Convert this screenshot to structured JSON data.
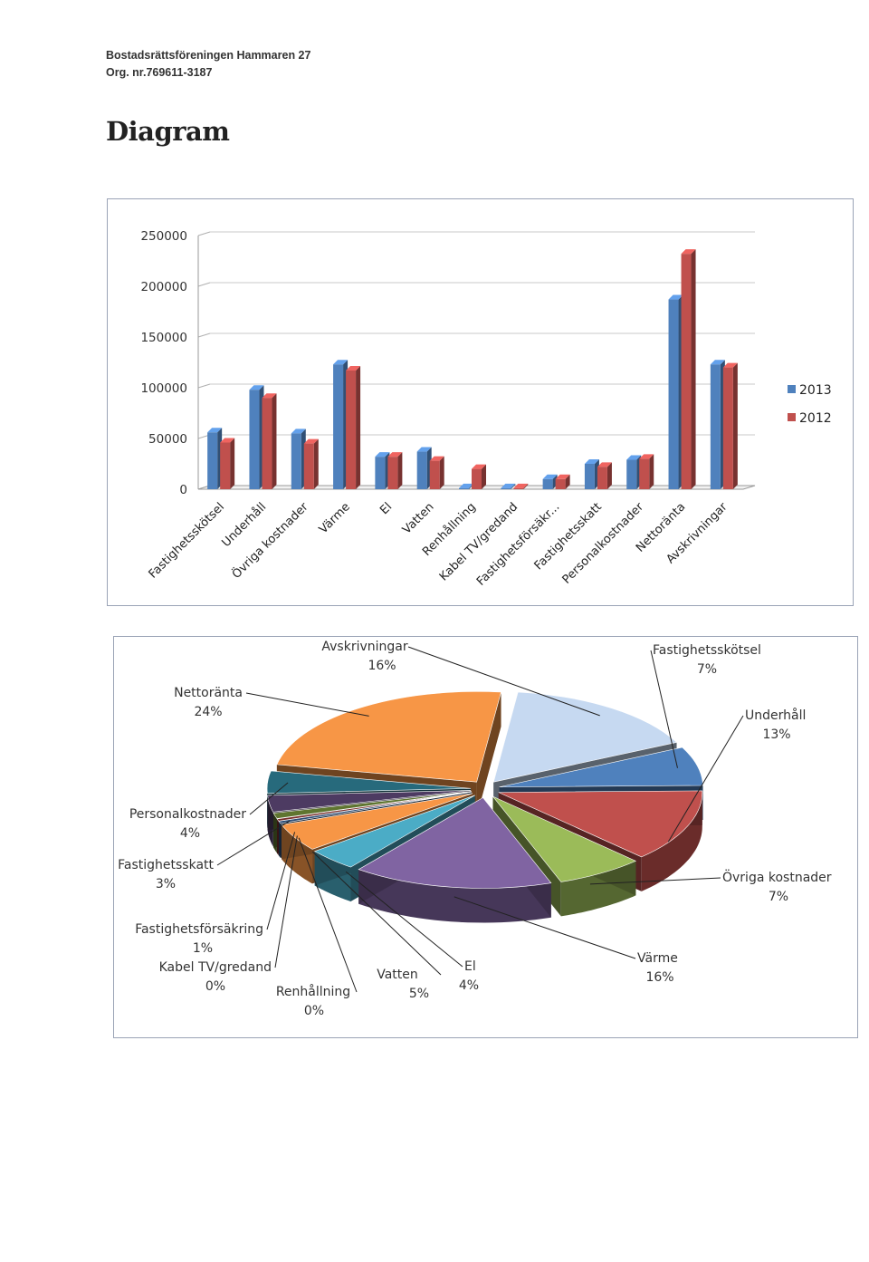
{
  "header": {
    "org_name": "Bostadsrättsföreningen Hammaren 27",
    "org_nr": "Org. nr.769611-3187",
    "title": "Diagram"
  },
  "colors": {
    "series_2013": "#4f81bd",
    "series_2012": "#c0504d"
  },
  "chart_data": [
    {
      "type": "bar",
      "style": "3d-clustered-column",
      "title": "",
      "xlabel": "",
      "ylabel": "",
      "ylim": [
        0,
        250000
      ],
      "yticks": [
        "0",
        "50000",
        "100000",
        "150000",
        "200000",
        "250000"
      ],
      "categories": [
        "Fastighetsskötsel",
        "Underhåll",
        "Övriga kostnader",
        "Värme",
        "El",
        "Vatten",
        "Renhållning",
        "Kabel TV/gredand",
        "Fastighetsförsäkr...",
        "Fastighetsskatt",
        "Personalkostnader",
        "Nettoränta",
        "Avskrivningar"
      ],
      "series": [
        {
          "name": "2013",
          "values": [
            56000,
            98000,
            55000,
            123000,
            32000,
            37000,
            1000,
            1000,
            10000,
            25000,
            29000,
            187000,
            123000
          ]
        },
        {
          "name": "2012",
          "values": [
            46000,
            90000,
            45000,
            117000,
            32000,
            28000,
            20000,
            1000,
            10000,
            22000,
            30000,
            232000,
            120000
          ]
        }
      ],
      "legend": "right"
    },
    {
      "type": "pie",
      "style": "3d-exploded-pie",
      "title": "",
      "slices": [
        {
          "label": "Avskrivningar",
          "pct_label": "16%",
          "value": 16,
          "color": "#c6d9f1"
        },
        {
          "label": "Fastighetsskötsel",
          "pct_label": "7%",
          "value": 7,
          "color": "#4f81bd"
        },
        {
          "label": "Underhåll",
          "pct_label": "13%",
          "value": 13,
          "color": "#c0504d"
        },
        {
          "label": "Övriga kostnader",
          "pct_label": "7%",
          "value": 7,
          "color": "#9bbb59"
        },
        {
          "label": "Värme",
          "pct_label": "16%",
          "value": 16,
          "color": "#8064a2"
        },
        {
          "label": "El",
          "pct_label": "4%",
          "value": 4,
          "color": "#4bacc6"
        },
        {
          "label": "Vatten",
          "pct_label": "5%",
          "value": 5,
          "color": "#f79646"
        },
        {
          "label": "Renhållning",
          "pct_label": "0%",
          "value": 0.4,
          "color": "#2c4d75"
        },
        {
          "label": "Kabel TV/gredand",
          "pct_label": "0%",
          "value": 0.4,
          "color": "#772c2a"
        },
        {
          "label": "Fastighetsförsäkring",
          "pct_label": "1%",
          "value": 1,
          "color": "#5f7530"
        },
        {
          "label": "Fastighetsskatt",
          "pct_label": "3%",
          "value": 3,
          "color": "#4d3b62"
        },
        {
          "label": "Personalkostnader",
          "pct_label": "4%",
          "value": 4,
          "color": "#276a7c"
        },
        {
          "label": "Nettoränta",
          "pct_label": "24%",
          "value": 24,
          "color": "#f79646"
        }
      ]
    }
  ]
}
